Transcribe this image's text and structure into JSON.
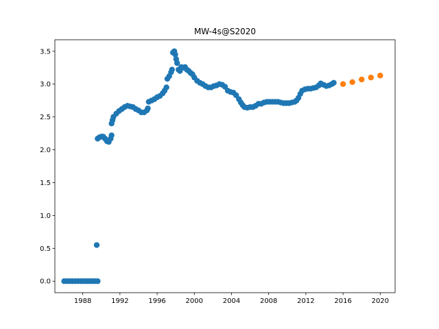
{
  "chart_data": {
    "type": "scatter",
    "title": "MW-4s@S2020",
    "xlabel": "",
    "ylabel": "",
    "xlim": [
      1985.0,
      2021.6
    ],
    "ylim": [
      -0.175,
      3.675
    ],
    "xticks": [
      1988,
      1992,
      1996,
      2000,
      2004,
      2008,
      2012,
      2016,
      2020
    ],
    "xtick_labels": [
      "1988",
      "1992",
      "1996",
      "2000",
      "2004",
      "2008",
      "2012",
      "2016",
      "2020"
    ],
    "yticks": [
      0.0,
      0.5,
      1.0,
      1.5,
      2.0,
      2.5,
      3.0,
      3.5
    ],
    "ytick_labels": [
      "0.0",
      "0.5",
      "1.0",
      "1.5",
      "2.0",
      "2.5",
      "3.0",
      "3.5"
    ],
    "grid": false,
    "series": [
      {
        "color": "#1f77b4",
        "points": [
          [
            1986.0,
            0.0
          ],
          [
            1986.3,
            0.0
          ],
          [
            1986.6,
            0.0
          ],
          [
            1986.9,
            0.0
          ],
          [
            1987.2,
            0.0
          ],
          [
            1987.5,
            0.0
          ],
          [
            1987.8,
            0.0
          ],
          [
            1988.1,
            0.0
          ],
          [
            1988.4,
            0.0
          ],
          [
            1988.7,
            0.0
          ],
          [
            1989.0,
            0.0
          ],
          [
            1989.3,
            0.0
          ],
          [
            1989.6,
            0.0
          ],
          [
            1989.5,
            0.55
          ],
          [
            1989.6,
            2.17
          ],
          [
            1989.8,
            2.19
          ],
          [
            1990.0,
            2.2
          ],
          [
            1990.2,
            2.2
          ],
          [
            1990.4,
            2.17
          ],
          [
            1990.6,
            2.13
          ],
          [
            1990.8,
            2.12
          ],
          [
            1991.0,
            2.17
          ],
          [
            1991.1,
            2.22
          ],
          [
            1991.1,
            2.4
          ],
          [
            1991.2,
            2.45
          ],
          [
            1991.3,
            2.5
          ],
          [
            1991.6,
            2.55
          ],
          [
            1991.9,
            2.59
          ],
          [
            1992.2,
            2.62
          ],
          [
            1992.5,
            2.65
          ],
          [
            1992.8,
            2.67
          ],
          [
            1993.1,
            2.66
          ],
          [
            1993.4,
            2.65
          ],
          [
            1993.7,
            2.62
          ],
          [
            1994.0,
            2.6
          ],
          [
            1994.3,
            2.57
          ],
          [
            1994.6,
            2.57
          ],
          [
            1994.9,
            2.6
          ],
          [
            1995.0,
            2.63
          ],
          [
            1995.1,
            2.73
          ],
          [
            1995.4,
            2.75
          ],
          [
            1995.7,
            2.77
          ],
          [
            1996.0,
            2.8
          ],
          [
            1996.3,
            2.82
          ],
          [
            1996.6,
            2.86
          ],
          [
            1996.8,
            2.9
          ],
          [
            1997.0,
            2.95
          ],
          [
            1997.1,
            3.08
          ],
          [
            1997.3,
            3.12
          ],
          [
            1997.5,
            3.18
          ],
          [
            1997.6,
            3.22
          ],
          [
            1997.7,
            3.48
          ],
          [
            1997.85,
            3.5
          ],
          [
            1997.95,
            3.45
          ],
          [
            1998.05,
            3.38
          ],
          [
            1998.15,
            3.32
          ],
          [
            1998.3,
            3.22
          ],
          [
            1998.45,
            3.2
          ],
          [
            1998.6,
            3.26
          ],
          [
            1998.8,
            3.25
          ],
          [
            1999.0,
            3.26
          ],
          [
            1999.2,
            3.22
          ],
          [
            1999.4,
            3.2
          ],
          [
            1999.6,
            3.17
          ],
          [
            1999.8,
            3.15
          ],
          [
            2000.0,
            3.1
          ],
          [
            2000.3,
            3.05
          ],
          [
            2000.6,
            3.02
          ],
          [
            2000.9,
            3.0
          ],
          [
            2001.2,
            2.97
          ],
          [
            2001.5,
            2.95
          ],
          [
            2001.8,
            2.95
          ],
          [
            2002.1,
            2.97
          ],
          [
            2002.4,
            2.98
          ],
          [
            2002.7,
            3.0
          ],
          [
            2003.0,
            2.99
          ],
          [
            2003.3,
            2.96
          ],
          [
            2003.6,
            2.9
          ],
          [
            2003.9,
            2.88
          ],
          [
            2004.2,
            2.87
          ],
          [
            2004.5,
            2.83
          ],
          [
            2004.8,
            2.77
          ],
          [
            2005.0,
            2.72
          ],
          [
            2005.2,
            2.68
          ],
          [
            2005.4,
            2.65
          ],
          [
            2005.7,
            2.64
          ],
          [
            2006.0,
            2.65
          ],
          [
            2006.3,
            2.65
          ],
          [
            2006.6,
            2.67
          ],
          [
            2006.9,
            2.7
          ],
          [
            2007.2,
            2.7
          ],
          [
            2007.5,
            2.72
          ],
          [
            2007.8,
            2.73
          ],
          [
            2008.1,
            2.73
          ],
          [
            2008.4,
            2.73
          ],
          [
            2008.7,
            2.73
          ],
          [
            2009.0,
            2.73
          ],
          [
            2009.3,
            2.72
          ],
          [
            2009.6,
            2.71
          ],
          [
            2009.9,
            2.71
          ],
          [
            2010.2,
            2.71
          ],
          [
            2010.5,
            2.72
          ],
          [
            2010.8,
            2.73
          ],
          [
            2011.0,
            2.75
          ],
          [
            2011.2,
            2.79
          ],
          [
            2011.4,
            2.85
          ],
          [
            2011.6,
            2.9
          ],
          [
            2011.9,
            2.92
          ],
          [
            2012.2,
            2.93
          ],
          [
            2012.5,
            2.93
          ],
          [
            2012.8,
            2.94
          ],
          [
            2013.1,
            2.95
          ],
          [
            2013.4,
            2.98
          ],
          [
            2013.6,
            3.01
          ],
          [
            2013.9,
            2.99
          ],
          [
            2014.2,
            2.97
          ],
          [
            2014.5,
            2.98
          ],
          [
            2014.8,
            3.0
          ],
          [
            2015.0,
            3.02
          ]
        ]
      },
      {
        "color": "#ff7f0e",
        "points": [
          [
            2016.0,
            3.0
          ],
          [
            2017.0,
            3.03
          ],
          [
            2018.0,
            3.07
          ],
          [
            2019.0,
            3.1
          ],
          [
            2020.0,
            3.13
          ]
        ]
      }
    ]
  }
}
